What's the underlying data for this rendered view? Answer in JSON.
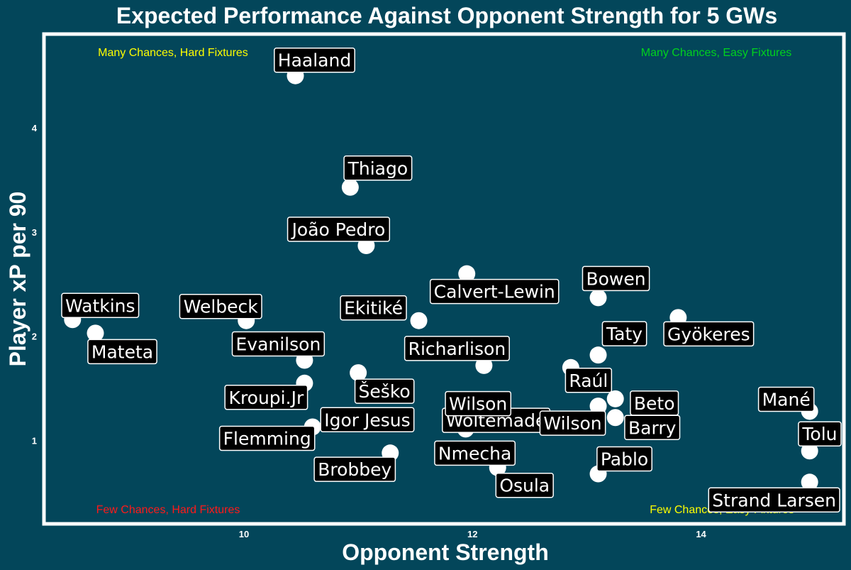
{
  "chart_data": {
    "type": "scatter",
    "title": "Expected Performance Against Opponent Strength for 5 GWs",
    "xlabel": "Opponent Strength",
    "ylabel": "Player xP per 90",
    "xlim": [
      8.25,
      15.25
    ],
    "ylim": [
      0.2,
      4.9
    ],
    "xticks": [
      10,
      12,
      14
    ],
    "yticks": [
      1,
      2,
      3,
      4
    ],
    "grid": false,
    "colors": {
      "background": "#03465a",
      "panel_border": "#ffffff",
      "point": "#ffffff",
      "label_box": "#000000",
      "text": "#ffffff"
    },
    "quadrant_labels": [
      {
        "text": "Many Chances, Hard Fixtures",
        "corner": "top-left",
        "color": "#ffff00"
      },
      {
        "text": "Many Chances, Easy Fixtures",
        "corner": "top-right",
        "color": "#00d21e"
      },
      {
        "text": "Few Chances, Hard Fixtures",
        "corner": "bottom-left",
        "color": "#ff1a1a"
      },
      {
        "text": "Few Chances, Easy Fixtures",
        "corner": "bottom-right",
        "color": "#ffff00"
      }
    ],
    "points": [
      {
        "name": "Haaland",
        "x": 10.45,
        "y": 4.5
      },
      {
        "name": "Thiago",
        "x": 10.93,
        "y": 3.43
      },
      {
        "name": "João Pedro",
        "x": 11.07,
        "y": 2.87
      },
      {
        "name": "Calvert-Lewin",
        "x": 11.95,
        "y": 2.6
      },
      {
        "name": "Bowen",
        "x": 13.1,
        "y": 2.37
      },
      {
        "name": "Watkins",
        "x": 8.5,
        "y": 2.16
      },
      {
        "name": "Welbeck",
        "x": 10.02,
        "y": 2.15
      },
      {
        "name": "Ekitiké",
        "x": 11.53,
        "y": 2.15
      },
      {
        "name": "Gyökeres",
        "x": 13.8,
        "y": 2.18
      },
      {
        "name": "Mateta",
        "x": 8.7,
        "y": 2.03
      },
      {
        "name": "Taty",
        "x": 13.1,
        "y": 1.82
      },
      {
        "name": "Evanilson",
        "x": 10.53,
        "y": 1.77
      },
      {
        "name": "Richarlison",
        "x": 12.1,
        "y": 1.72
      },
      {
        "name": "Raúl",
        "x": 12.86,
        "y": 1.7
      },
      {
        "name": "Šeško",
        "x": 11.0,
        "y": 1.65
      },
      {
        "name": "Kroupi.Jr",
        "x": 10.53,
        "y": 1.55
      },
      {
        "name": "Woltemade",
        "x": 12.25,
        "y": 1.35
      },
      {
        "name": "Beto",
        "x": 13.25,
        "y": 1.4
      },
      {
        "name": "Wilson",
        "x": 12.08,
        "y": 1.32
      },
      {
        "name": "Wilson",
        "x": 13.1,
        "y": 1.33
      },
      {
        "name": "Mané",
        "x": 14.95,
        "y": 1.28
      },
      {
        "name": "Igor Jesus",
        "x": 10.85,
        "y": 1.22
      },
      {
        "name": "Barry",
        "x": 13.25,
        "y": 1.22
      },
      {
        "name": "Flemming",
        "x": 10.6,
        "y": 1.13
      },
      {
        "name": "Nmecha",
        "x": 11.94,
        "y": 1.11
      },
      {
        "name": "Tolu",
        "x": 14.95,
        "y": 0.9
      },
      {
        "name": "Brobbey",
        "x": 11.28,
        "y": 0.88
      },
      {
        "name": "Osula",
        "x": 12.22,
        "y": 0.74
      },
      {
        "name": "Pablo",
        "x": 13.1,
        "y": 0.68
      },
      {
        "name": "Strand Larsen",
        "x": 14.95,
        "y": 0.6
      }
    ]
  }
}
